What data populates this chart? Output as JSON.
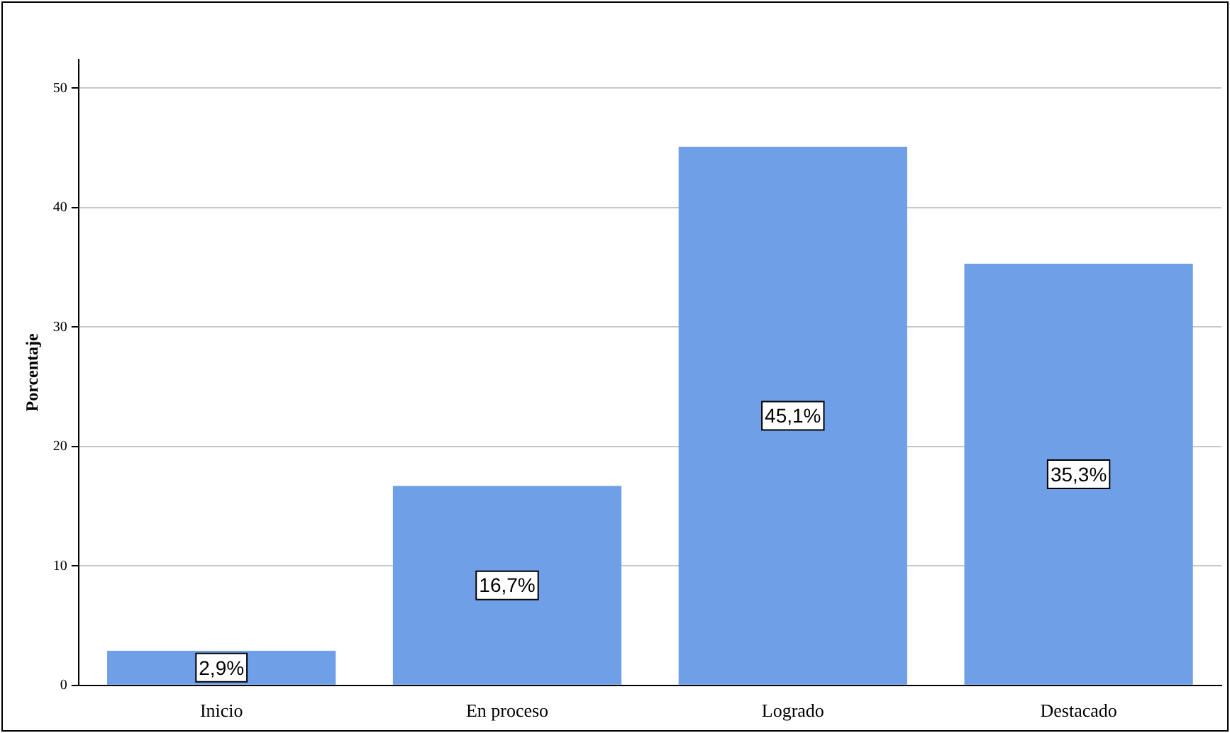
{
  "chart_data": {
    "type": "bar",
    "ylabel": "Porcentaje",
    "categories": [
      "Inicio",
      "En proceso",
      "Logrado",
      "Destacado"
    ],
    "values": [
      2.9,
      16.7,
      45.1,
      35.3
    ],
    "color": "#6f9fe6",
    "value_labels": [
      "2,9%",
      "16,7%",
      "45,1%",
      "35,3%"
    ],
    "ylim": [
      0,
      52.4
    ],
    "yticks": [
      0,
      10,
      20,
      30,
      40,
      50
    ],
    "grid": "y",
    "legend": false
  }
}
